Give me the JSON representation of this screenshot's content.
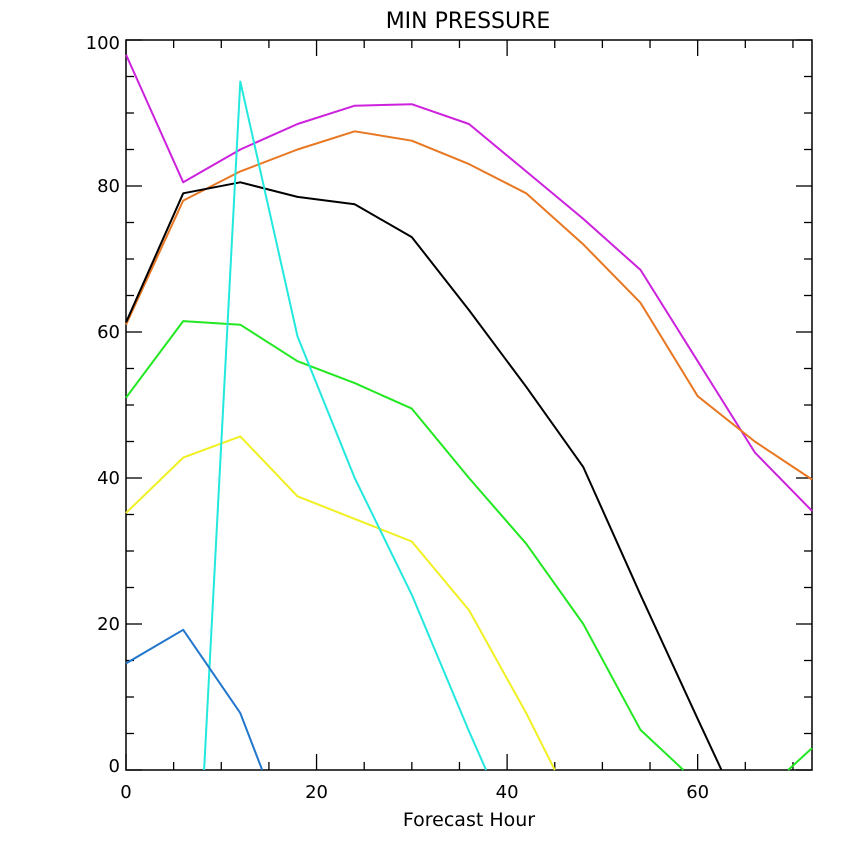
{
  "chart_data": {
    "type": "line",
    "title": "MIN PRESSURE",
    "xlabel": "Forecast Hour",
    "ylabel": "",
    "xlim": [
      0,
      72
    ],
    "ylim": [
      0,
      100
    ],
    "x_ticks": [
      0,
      20,
      40,
      60
    ],
    "y_ticks": [
      0,
      20,
      40,
      60,
      80,
      100
    ],
    "x_tick_labels": [
      "0",
      "20",
      "40",
      "60"
    ],
    "y_tick_labels": [
      "0",
      "20",
      "40",
      "60",
      "80",
      "100"
    ],
    "grid": false,
    "legend": "none",
    "series": [
      {
        "color": "#cc22dd",
        "x": [
          0,
          6,
          12,
          18,
          24,
          30,
          36,
          42,
          48,
          54,
          60,
          66,
          72
        ],
        "y": [
          98,
          80.5,
          85,
          88.5,
          91,
          91.2,
          88.5,
          82,
          75.5,
          68.5,
          56,
          43.5,
          35.5
        ]
      },
      {
        "color": "#e87722",
        "x": [
          0,
          6,
          12,
          18,
          24,
          30,
          36,
          42,
          48,
          54,
          60,
          66,
          72
        ],
        "y": [
          61,
          78,
          82,
          85,
          87.5,
          86.2,
          83,
          79,
          72,
          64,
          51.2,
          45,
          39.8
        ]
      },
      {
        "color": "#000000",
        "x": [
          0,
          6,
          12,
          18,
          24,
          30,
          36,
          42,
          48,
          54,
          60,
          62.5
        ],
        "y": [
          61.3,
          79,
          80.5,
          78.5,
          77.5,
          73,
          63,
          52.5,
          41.5,
          24,
          7,
          0
        ]
      },
      {
        "color": "#22e822",
        "x": [
          0,
          6,
          12,
          18,
          24,
          30,
          36,
          42,
          48,
          54,
          58.5
        ],
        "y": [
          51,
          61.5,
          61,
          56,
          53,
          49.5,
          40,
          31,
          20,
          5.5,
          0
        ]
      },
      {
        "color": "#22e822",
        "x": [
          69.5,
          72
        ],
        "y": [
          0,
          3
        ]
      },
      {
        "color": "#f0f022",
        "x": [
          0,
          6,
          12,
          18,
          24,
          30,
          36,
          42,
          45
        ],
        "y": [
          35.2,
          42.8,
          45.7,
          37.5,
          34.4,
          31.3,
          21.9,
          7.8,
          0
        ]
      },
      {
        "color": "#22e8dd",
        "x": [
          8.2,
          12,
          18,
          24,
          30,
          36,
          37.8
        ],
        "y": [
          0,
          94.3,
          59.4,
          40,
          24,
          5.3,
          0
        ]
      },
      {
        "color": "#2277cc",
        "x": [
          0,
          6,
          12,
          14.3
        ],
        "y": [
          14.6,
          19.2,
          7.8,
          0
        ]
      }
    ]
  }
}
